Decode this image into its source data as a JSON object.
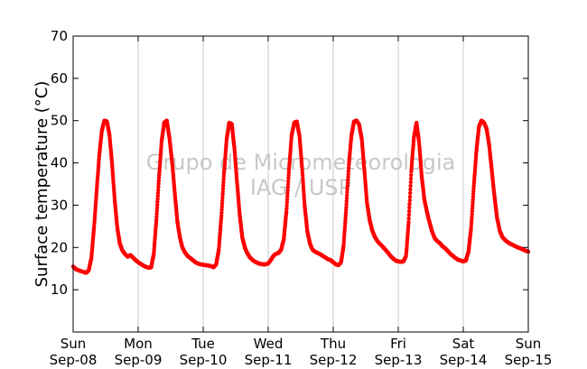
{
  "chart_data": {
    "type": "scatter",
    "title": "",
    "xlabel": "",
    "ylabel": "Surface temperature (°C)",
    "ylim": [
      0,
      70
    ],
    "yticks": [
      10,
      20,
      30,
      40,
      50,
      60,
      70
    ],
    "xlim": [
      0,
      7
    ],
    "grid": "vertical",
    "legend": "none",
    "xticks": [
      {
        "day": "Sun",
        "date": "Sep-08"
      },
      {
        "day": "Mon",
        "date": "Sep-09"
      },
      {
        "day": "Tue",
        "date": "Sep-10"
      },
      {
        "day": "Wed",
        "date": "Sep-11"
      },
      {
        "day": "Thu",
        "date": "Sep-12"
      },
      {
        "day": "Fri",
        "date": "Sep-13"
      },
      {
        "day": "Sat",
        "date": "Sep-14"
      },
      {
        "day": "Sun",
        "date": "Sep-15"
      }
    ],
    "marker_color": "#ff0000",
    "watermark": [
      "Grupo de Micrometeorologia",
      "IAG / USP"
    ],
    "series": [
      {
        "x": [
          0.0,
          0.04,
          0.08,
          0.12,
          0.16,
          0.2,
          0.24,
          0.28,
          0.32,
          0.36,
          0.4,
          0.44,
          0.48,
          0.52,
          0.56,
          0.6,
          0.64,
          0.68,
          0.72,
          0.76,
          0.8,
          0.84,
          0.88,
          0.92,
          0.96,
          1.0,
          1.04,
          1.08,
          1.12,
          1.16,
          1.2,
          1.24,
          1.28,
          1.32,
          1.36,
          1.4,
          1.44,
          1.48,
          1.52,
          1.56,
          1.6,
          1.64,
          1.68,
          1.72,
          1.76,
          1.8,
          1.84,
          1.88,
          1.92,
          1.96,
          2.0,
          2.04,
          2.08,
          2.12,
          2.16,
          2.2,
          2.24,
          2.28,
          2.32,
          2.36,
          2.4,
          2.44,
          2.48,
          2.52,
          2.56,
          2.6,
          2.64,
          2.68,
          2.72,
          2.76,
          2.8,
          2.84,
          2.88,
          2.92,
          2.96,
          3.0,
          3.04,
          3.08,
          3.12,
          3.16,
          3.2,
          3.24,
          3.28,
          3.32,
          3.36,
          3.4,
          3.44,
          3.48,
          3.52,
          3.56,
          3.6,
          3.64,
          3.68,
          3.72,
          3.76,
          3.8,
          3.84,
          3.88,
          3.92,
          3.96,
          4.0,
          4.04,
          4.08,
          4.12,
          4.16,
          4.2,
          4.24,
          4.28,
          4.32,
          4.36,
          4.4,
          4.44,
          4.48,
          4.52,
          4.56,
          4.6,
          4.64,
          4.68,
          4.72,
          4.76,
          4.8,
          4.84,
          4.88,
          4.92,
          4.96,
          5.0,
          5.04,
          5.08,
          5.12,
          5.16,
          5.2,
          5.24,
          5.28,
          5.32,
          5.36,
          5.4,
          5.44,
          5.48,
          5.52,
          5.56,
          5.6,
          5.64,
          5.68,
          5.72,
          5.76,
          5.8,
          5.84,
          5.88,
          5.92,
          5.96,
          6.0,
          6.04,
          6.08,
          6.12,
          6.16,
          6.2,
          6.24,
          6.28,
          6.32,
          6.36,
          6.4,
          6.44,
          6.48,
          6.52,
          6.56,
          6.6,
          6.64,
          6.68,
          6.72,
          6.76,
          6.8,
          6.84,
          6.88,
          6.92,
          6.96,
          7.0
        ],
        "y": [
          15.5,
          14.9,
          14.6,
          14.4,
          14.2,
          14.0,
          14.6,
          17.5,
          24.5,
          33.0,
          41.5,
          47.5,
          50.0,
          49.8,
          46.5,
          39.5,
          31.0,
          24.5,
          20.8,
          19.2,
          18.4,
          17.8,
          18.2,
          17.6,
          17.0,
          16.5,
          16.1,
          15.7,
          15.4,
          15.2,
          15.3,
          18.5,
          26.5,
          36.5,
          45.0,
          49.5,
          50.0,
          46.0,
          40.5,
          33.5,
          26.5,
          22.5,
          20.0,
          18.8,
          18.0,
          17.5,
          17.0,
          16.5,
          16.2,
          16.0,
          15.9,
          15.8,
          15.7,
          15.6,
          15.3,
          16.0,
          19.5,
          27.5,
          37.5,
          45.5,
          49.5,
          49.2,
          43.5,
          35.5,
          28.0,
          22.5,
          20.0,
          18.6,
          17.6,
          17.0,
          16.6,
          16.3,
          16.1,
          16.0,
          16.0,
          16.2,
          17.0,
          18.0,
          18.5,
          18.7,
          19.5,
          22.0,
          28.5,
          38.5,
          46.5,
          49.5,
          49.8,
          46.5,
          39.0,
          30.0,
          24.0,
          21.0,
          19.5,
          19.0,
          18.7,
          18.4,
          18.0,
          17.6,
          17.2,
          17.0,
          16.5,
          16.0,
          15.8,
          16.5,
          20.5,
          29.5,
          39.5,
          46.5,
          49.8,
          50.0,
          49.0,
          45.5,
          38.0,
          30.5,
          26.5,
          24.0,
          22.5,
          21.5,
          20.8,
          20.2,
          19.5,
          18.8,
          18.0,
          17.4,
          16.9,
          16.7,
          16.6,
          16.7,
          18.0,
          26.0,
          38.0,
          46.0,
          49.5,
          45.0,
          37.0,
          31.5,
          28.5,
          26.0,
          23.8,
          22.2,
          21.5,
          21.0,
          20.3,
          19.8,
          19.2,
          18.5,
          18.0,
          17.5,
          17.1,
          16.9,
          16.7,
          16.9,
          19.0,
          24.5,
          34.0,
          42.5,
          48.5,
          50.0,
          49.5,
          48.0,
          44.0,
          38.0,
          32.0,
          27.0,
          24.0,
          22.5,
          21.8,
          21.3,
          20.9,
          20.6,
          20.3,
          20.0,
          19.8,
          19.5,
          19.2,
          19.0
        ]
      }
    ]
  }
}
